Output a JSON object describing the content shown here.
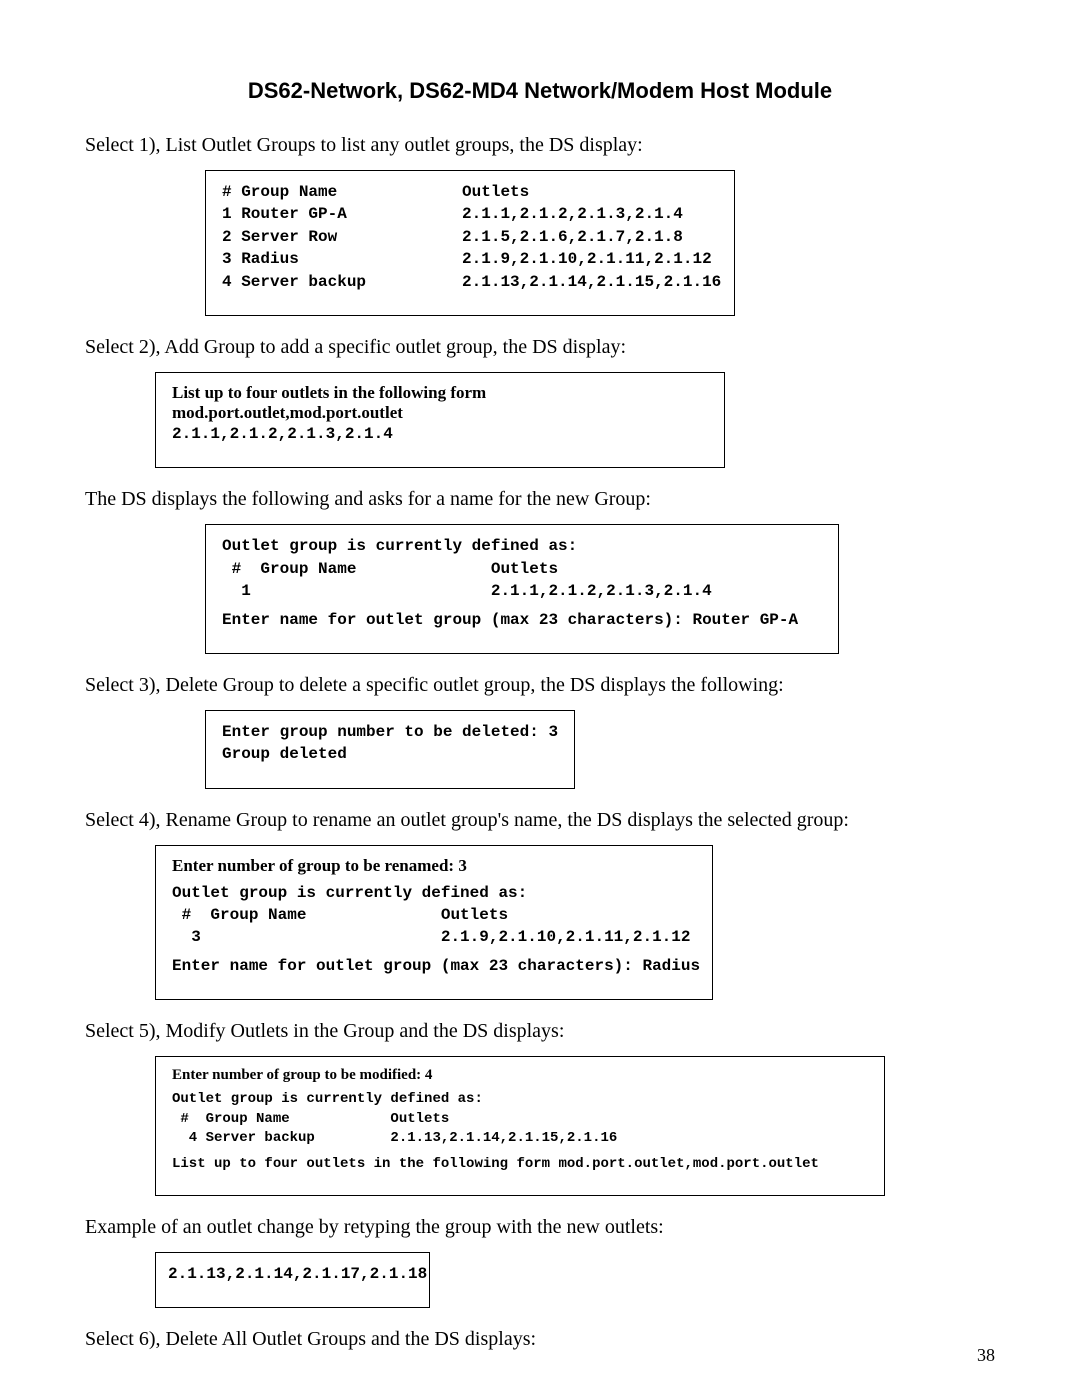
{
  "title": "DS62-Network, DS62-MD4 Network/Modem Host Module",
  "para1": "Select 1), List Outlet Groups to list any outlet groups, the DS display:",
  "box1_line1": "# Group Name             Outlets",
  "box1_line2": "1 Router GP-A            2.1.1,2.1.2,2.1.3,2.1.4",
  "box1_line3": "2 Server Row             2.1.5,2.1.6,2.1.7,2.1.8",
  "box1_line4": "3 Radius                 2.1.9,2.1.10,2.1.11,2.1.12",
  "box1_line5": "4 Server backup          2.1.13,2.1.14,2.1.15,2.1.16",
  "para2": "Select 2), Add Group to add a specific outlet group, the DS display:",
  "box2_bold": "List up to four outlets in the following form mod.port.outlet,mod.port.outlet",
  "box2_mono": "2.1.1,2.1.2,2.1.3,2.1.4",
  "para3": "The DS displays the following and asks for a name for the new Group:",
  "box3_line1": "Outlet group is currently defined as:",
  "box3_line2": " #  Group Name              Outlets",
  "box3_line3": "  1                         2.1.1,2.1.2,2.1.3,2.1.4",
  "box3_line4": "Enter name for outlet group (max 23 characters): Router GP-A",
  "para4": "Select 3), Delete Group to delete a specific outlet group, the DS displays the following:",
  "box4_line1": "Enter group number to be deleted: 3",
  "box4_line2": "Group deleted",
  "para5": "Select 4), Rename Group to rename an outlet group's name, the DS displays the selected group:",
  "box5_bold": "Enter number of group to be renamed: 3",
  "box5_line1": "Outlet group is currently defined as:",
  "box5_line2": " #  Group Name              Outlets",
  "box5_line3": "  3                         2.1.9,2.1.10,2.1.11,2.1.12",
  "box5_line4": "Enter name for outlet group (max 23 characters): Radius",
  "para6": "Select 5), Modify Outlets in the Group and the DS displays:",
  "box6_bold": "Enter number of group to be modified: 4",
  "box6_line1": "Outlet group is currently defined as:",
  "box6_line2": " #  Group Name            Outlets",
  "box6_line3": "  4 Server backup         2.1.13,2.1.14,2.1.15,2.1.16",
  "box6_line4": "List up to four outlets in the following form mod.port.outlet,mod.port.outlet",
  "para7": "Example of an outlet change by retyping the group with the new outlets:",
  "box7_line1": "2.1.13,2.1.14,2.1.17,2.1.18",
  "para8": "Select 6), Delete All Outlet Groups and the DS displays:",
  "page_number": "38"
}
